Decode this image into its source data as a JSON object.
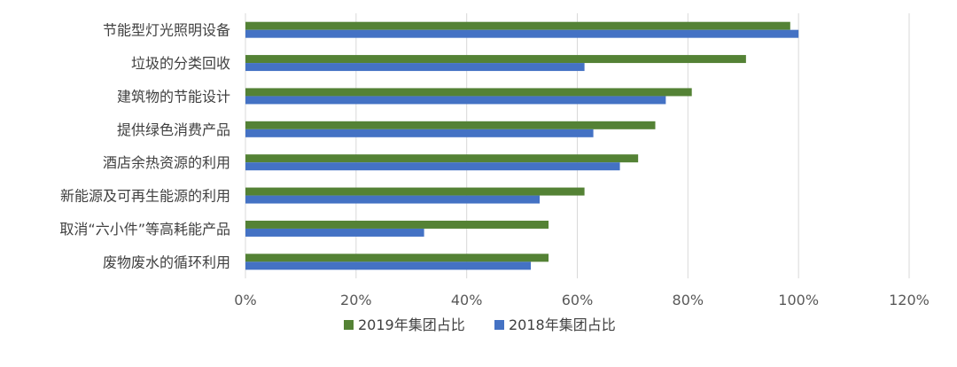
{
  "chart_data": {
    "type": "bar",
    "orientation": "horizontal",
    "categories": [
      "节能型灯光照明设备",
      "垃圾的分类回收",
      "建筑物的节能设计",
      "提供绿色消费产品",
      "酒店余热资源的利用",
      "新能源及可再生能源的利用",
      "取消“六小件”等高耗能产品",
      "废物废水的循环利用"
    ],
    "series": [
      {
        "name": "2019年集团占比",
        "color": "#548235",
        "values": [
          98.5,
          90.5,
          80.7,
          74.1,
          71.0,
          61.3,
          54.8,
          54.8
        ]
      },
      {
        "name": "2018年集团占比",
        "color": "#4472c4",
        "values": [
          100,
          61.3,
          76.0,
          62.9,
          67.7,
          53.2,
          32.3,
          51.6
        ]
      }
    ],
    "xlim": [
      0,
      120
    ],
    "ticks": [
      "0%",
      "20%",
      "40%",
      "60%",
      "80%",
      "100%",
      "120%"
    ],
    "grid": true,
    "legend_position": "bottom"
  }
}
